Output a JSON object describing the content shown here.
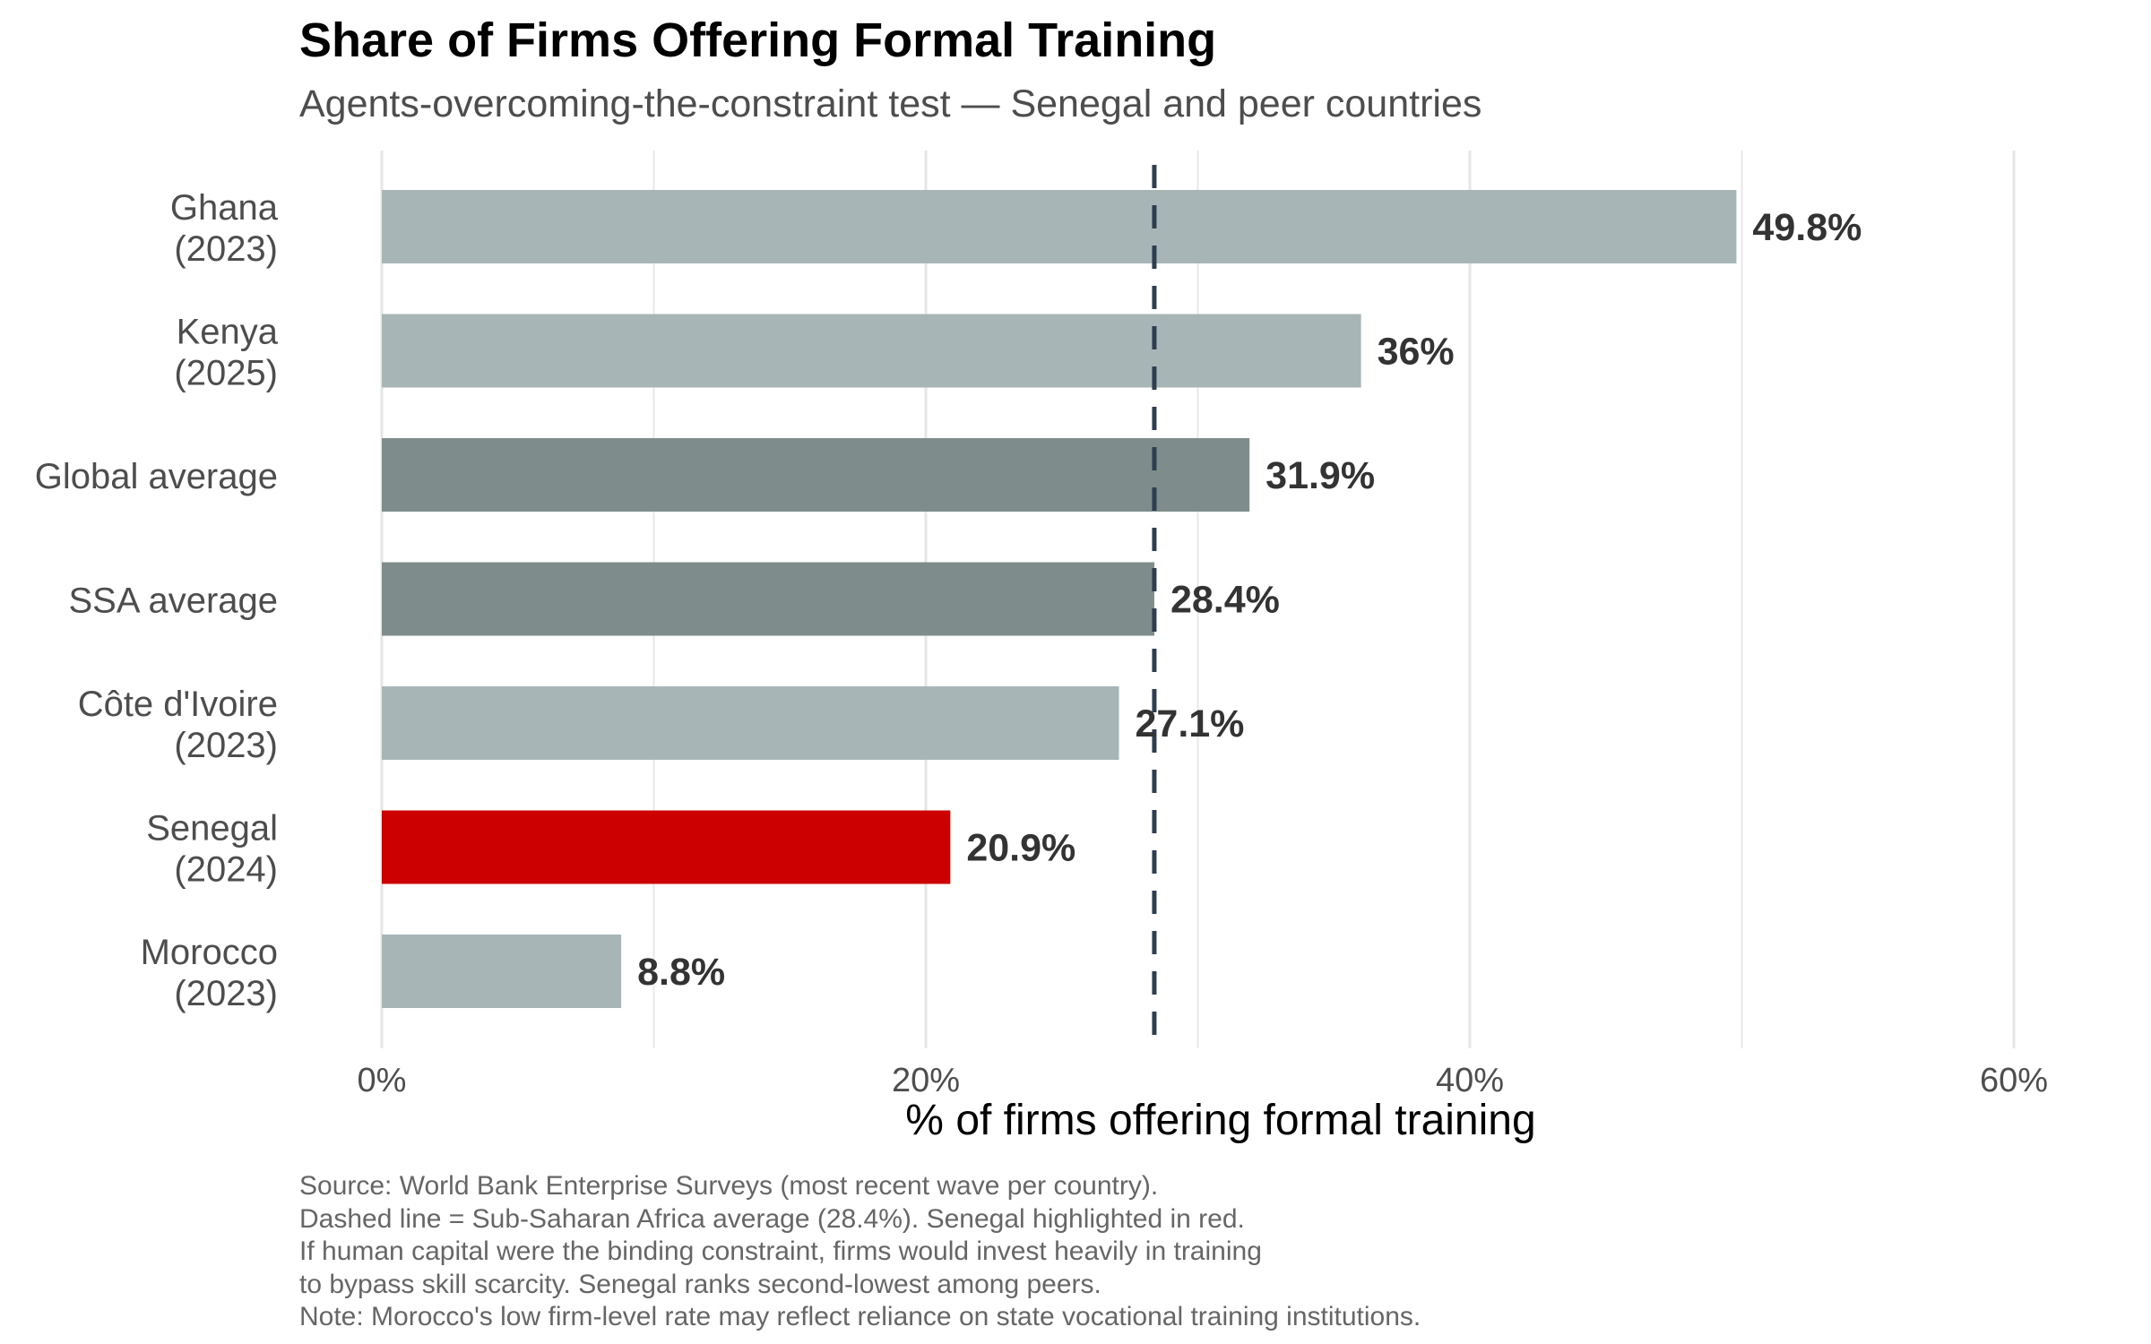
{
  "title": "Share of Firms Offering Formal Training",
  "subtitle": "Agents-overcoming-the-constraint test — Senegal and peer countries",
  "caption": [
    "Source: World Bank Enterprise Surveys (most recent wave per country).",
    "Dashed line = Sub-Saharan Africa average (28.4%). Senegal highlighted in red.",
    "If human capital were the binding constraint, firms would invest heavily in training",
    "to bypass skill scarcity. Senegal ranks second-lowest among peers.",
    "Note: Morocco's low firm-level rate may reflect reliance on state vocational training institutions."
  ],
  "colors": {
    "country": "#a8b5b6",
    "average": "#7f8c8c",
    "highlight": "#cc0000",
    "reference_line": "#2c3e50",
    "grid": "#e6e6e6",
    "label_text": "#333333",
    "tick_text": "#4d4d4d"
  },
  "chart_data": {
    "type": "bar",
    "orientation": "horizontal",
    "xlabel": "% of firms offering formal training",
    "ylabel": "",
    "xlim": [
      0,
      60
    ],
    "x_ticks": [
      0,
      20,
      40,
      60
    ],
    "x_tick_labels": [
      "0%",
      "20%",
      "40%",
      "60%"
    ],
    "grid": true,
    "legend": "none",
    "reference_line": {
      "value": 28.4,
      "style": "dashed"
    },
    "categories": [
      [
        "Ghana",
        "(2023)"
      ],
      [
        "Kenya",
        "(2025)"
      ],
      [
        "Global average"
      ],
      [
        "SSA average"
      ],
      [
        "Côte d'Ivoire",
        "(2023)"
      ],
      [
        "Senegal",
        "(2024)"
      ],
      [
        "Morocco",
        "(2023)"
      ]
    ],
    "values": [
      49.8,
      36,
      31.9,
      28.4,
      27.1,
      20.9,
      8.8
    ],
    "value_labels": [
      "49.8%",
      "36%",
      "31.9%",
      "28.4%",
      "27.1%",
      "20.9%",
      "8.8%"
    ],
    "bar_groups": [
      "country",
      "country",
      "average",
      "average",
      "country",
      "highlight",
      "country"
    ]
  }
}
